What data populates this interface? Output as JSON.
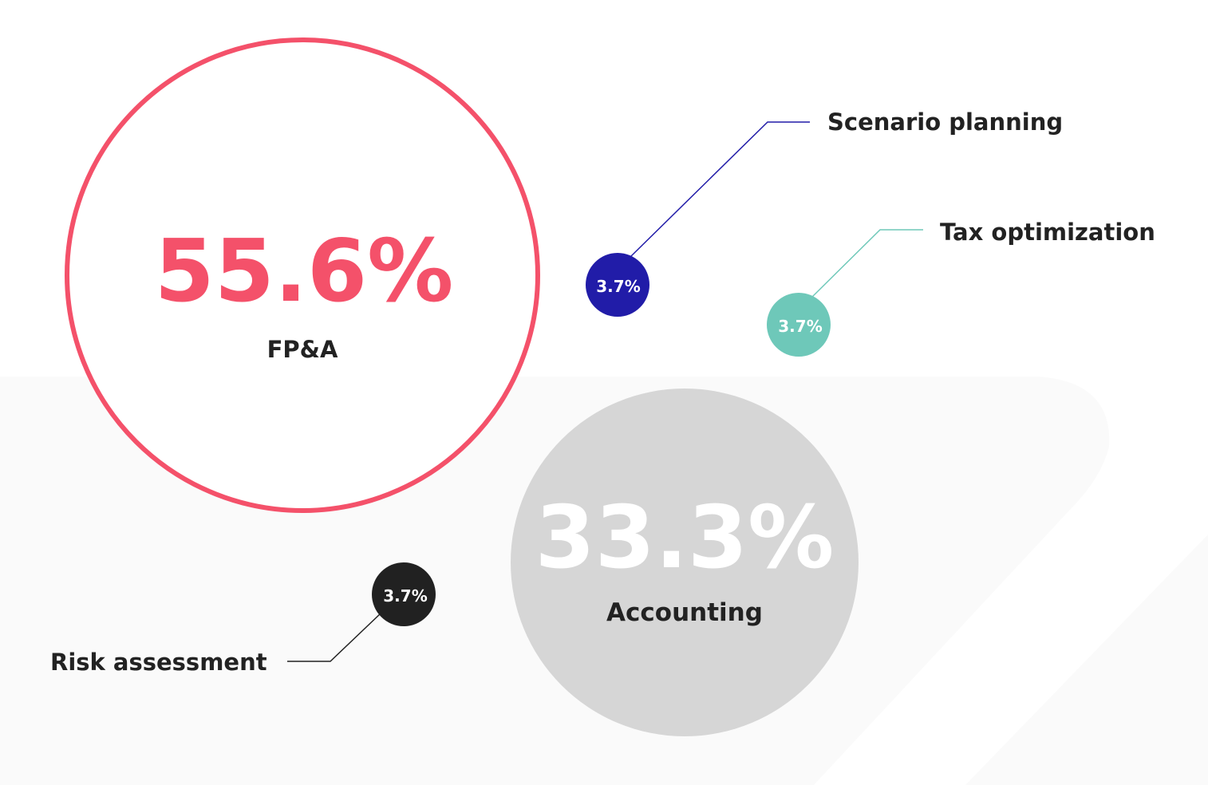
{
  "chart_data": {
    "type": "bubble",
    "title": "",
    "bubbles": [
      {
        "label": "FP&A",
        "value": 55.6,
        "value_text": "55.6%",
        "color": "#F4516A",
        "style": "outline"
      },
      {
        "label": "Accounting",
        "value": 33.3,
        "value_text": "33.3%",
        "color": "#D6D6D6",
        "style": "filled"
      },
      {
        "label": "Scenario planning",
        "value": 3.7,
        "value_text": "3.7%",
        "color": "#211CA8",
        "style": "filled"
      },
      {
        "label": "Tax optimization",
        "value": 3.7,
        "value_text": "3.7%",
        "color": "#6EC8B9",
        "style": "filled"
      },
      {
        "label": "Risk assessment",
        "value": 3.7,
        "value_text": "3.7%",
        "color": "#212121",
        "style": "filled"
      }
    ]
  },
  "colors": {
    "background": "#FFFFFF",
    "backdrop": "#FAFAFA",
    "label_text": "#222222",
    "small_value_text": "#FFFFFF"
  }
}
